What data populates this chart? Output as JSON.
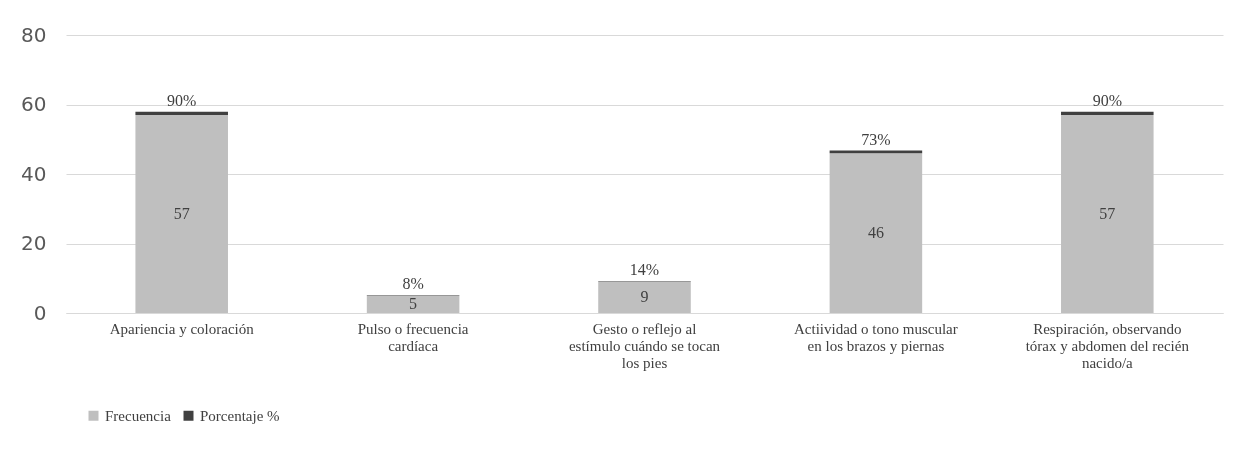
{
  "chart_data": {
    "type": "bar",
    "stacked": true,
    "categories": [
      "Apariencia y coloración",
      "Pulso o  frecuencia cardíaca",
      "Gesto o reflejo al estímulo cuándo se tocan los pies",
      "Actiividad o tono muscular en los brazos y piernas",
      "Respiración, observando tórax y abdomen del recién nacido/a"
    ],
    "series": [
      {
        "name": "Frecuencia",
        "color": "#bfbfbf",
        "values": [
          57,
          5,
          9,
          46,
          57
        ],
        "value_labels": [
          "57",
          "5",
          "9",
          "46",
          "57"
        ]
      },
      {
        "name": "Porcentaje %",
        "color": "#404040",
        "values": [
          0.9,
          0.08,
          0.14,
          0.73,
          0.9
        ],
        "value_labels": [
          "90%",
          "8%",
          "14%",
          "73%",
          "90%"
        ]
      }
    ],
    "ylim": [
      0,
      80
    ],
    "yticks": [
      0,
      20,
      40,
      60,
      80
    ],
    "grid": "y",
    "legend": "bottom"
  }
}
